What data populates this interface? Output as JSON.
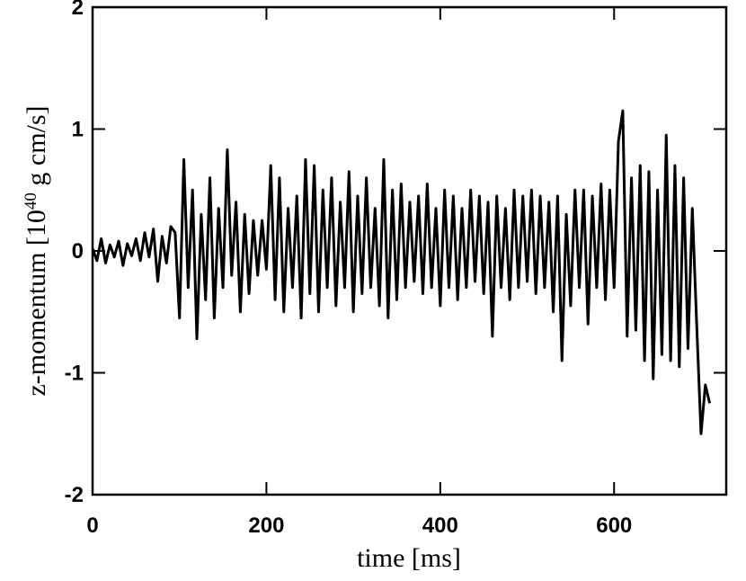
{
  "chart_data": {
    "type": "line",
    "xlabel": "time [ms]",
    "ylabel": {
      "text": "z-momentum [10",
      "sup": "40",
      "suffix": " g cm/s]"
    },
    "x": [
      0,
      5,
      10,
      15,
      20,
      25,
      30,
      35,
      40,
      45,
      50,
      55,
      60,
      65,
      70,
      75,
      80,
      85,
      90,
      95,
      100,
      105,
      110,
      115,
      120,
      125,
      130,
      135,
      140,
      145,
      150,
      155,
      160,
      165,
      170,
      175,
      180,
      185,
      190,
      195,
      200,
      205,
      210,
      215,
      220,
      225,
      230,
      235,
      240,
      245,
      250,
      255,
      260,
      265,
      270,
      275,
      280,
      285,
      290,
      295,
      300,
      305,
      310,
      315,
      320,
      325,
      330,
      335,
      340,
      345,
      350,
      355,
      360,
      365,
      370,
      375,
      380,
      385,
      390,
      395,
      400,
      405,
      410,
      415,
      420,
      425,
      430,
      435,
      440,
      445,
      450,
      455,
      460,
      465,
      470,
      475,
      480,
      485,
      490,
      495,
      500,
      505,
      510,
      515,
      520,
      525,
      530,
      535,
      540,
      545,
      550,
      555,
      560,
      565,
      570,
      575,
      580,
      585,
      590,
      595,
      600,
      605,
      610,
      615,
      620,
      625,
      630,
      635,
      640,
      645,
      650,
      655,
      660,
      665,
      670,
      675,
      680,
      685,
      690,
      695,
      700,
      705,
      710
    ],
    "series": [
      {
        "color": "#000000",
        "values": [
          0.02,
          -0.08,
          0.1,
          -0.1,
          0.05,
          -0.05,
          0.08,
          -0.12,
          0.06,
          -0.04,
          0.1,
          -0.08,
          0.15,
          -0.05,
          0.18,
          -0.25,
          0.12,
          -0.1,
          0.2,
          0.15,
          -0.55,
          0.75,
          -0.3,
          0.5,
          -0.72,
          0.3,
          -0.4,
          0.6,
          -0.55,
          0.35,
          -0.3,
          0.83,
          -0.2,
          0.4,
          -0.5,
          0.3,
          -0.35,
          0.25,
          -0.2,
          0.25,
          -0.15,
          0.7,
          -0.4,
          0.6,
          -0.5,
          0.35,
          -0.3,
          0.45,
          -0.55,
          0.75,
          -0.35,
          0.7,
          -0.5,
          0.5,
          -0.3,
          0.6,
          -0.45,
          0.4,
          -0.3,
          0.65,
          -0.5,
          0.45,
          -0.35,
          0.6,
          -0.3,
          0.35,
          -0.45,
          0.75,
          -0.55,
          0.5,
          -0.4,
          0.55,
          -0.3,
          0.4,
          -0.25,
          0.45,
          -0.35,
          0.55,
          -0.3,
          0.35,
          -0.45,
          0.5,
          -0.3,
          0.45,
          -0.4,
          0.35,
          -0.3,
          0.5,
          -0.25,
          0.45,
          -0.35,
          0.4,
          -0.7,
          0.45,
          -0.3,
          0.35,
          -0.4,
          0.5,
          -0.3,
          0.45,
          -0.25,
          0.5,
          -0.35,
          0.45,
          -0.3,
          0.4,
          -0.5,
          0.45,
          -0.9,
          0.3,
          -0.45,
          0.5,
          -0.3,
          0.5,
          -0.6,
          0.45,
          -0.3,
          0.55,
          -0.4,
          0.5,
          -0.3,
          0.9,
          1.15,
          -0.7,
          0.6,
          -0.65,
          0.7,
          -0.9,
          0.65,
          -1.05,
          0.5,
          -0.85,
          0.95,
          -0.9,
          0.7,
          -0.95,
          0.6,
          -0.8,
          0.35,
          -0.6,
          -1.5,
          -1.1,
          -1.25
        ]
      }
    ],
    "xlim": [
      0,
      729
    ],
    "ylim": [
      -2,
      2
    ],
    "xticks": [
      0,
      200,
      400,
      600
    ],
    "yticks": [
      -2,
      -1,
      0,
      1,
      2
    ]
  }
}
